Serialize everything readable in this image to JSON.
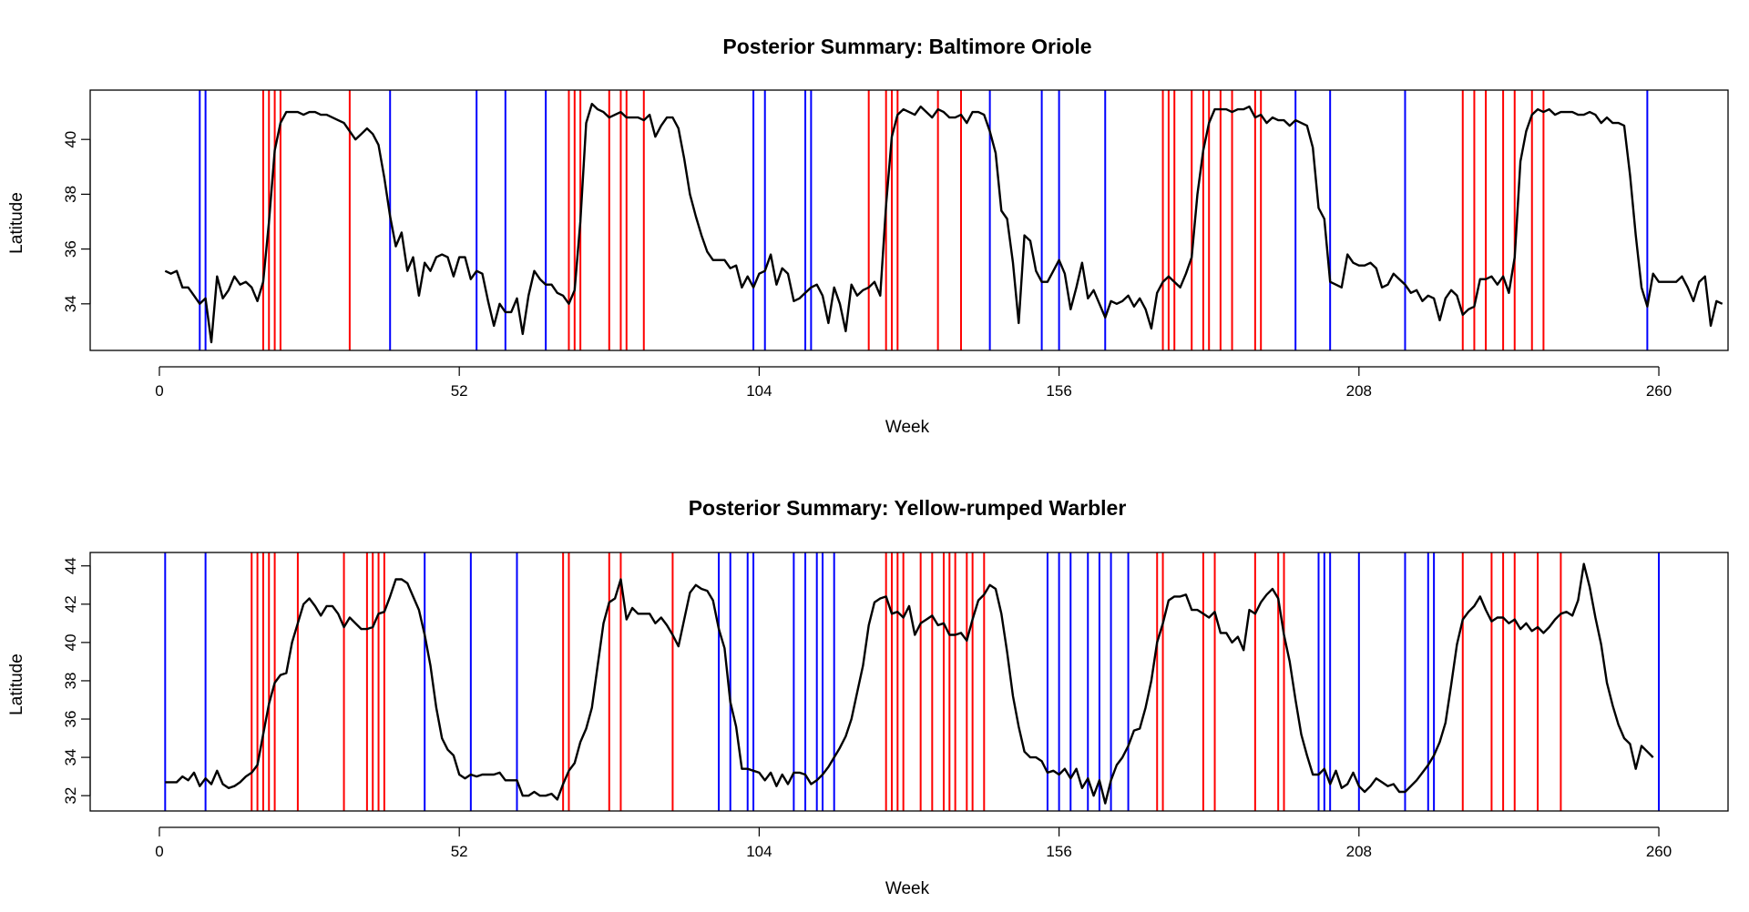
{
  "chart_data": [
    {
      "type": "line",
      "title": "Posterior Summary: Baltimore Oriole",
      "xlabel": "Week",
      "ylabel": "Latitude",
      "xlim": [
        -12,
        272
      ],
      "ylim": [
        32.3,
        41.8
      ],
      "xticks": [
        0,
        52,
        104,
        156,
        208,
        260
      ],
      "yticks": [
        34,
        36,
        38,
        40
      ],
      "line_color": "#000000",
      "blue_color": "#0000ff",
      "red_color": "#ff0000",
      "blue_lines": [
        7,
        8,
        40,
        55,
        60,
        67,
        103,
        105,
        112,
        113,
        144,
        153,
        156,
        164,
        197,
        203,
        216,
        258
      ],
      "red_lines": [
        18,
        19,
        20,
        21,
        33,
        71,
        72,
        73,
        78,
        80,
        81,
        84,
        123,
        126,
        127,
        128,
        135,
        139,
        174,
        175,
        176,
        179,
        181,
        182,
        184,
        186,
        190,
        191,
        226,
        228,
        230,
        233,
        235,
        238,
        240
      ],
      "values": [
        35.2,
        35.1,
        35.2,
        34.6,
        34.6,
        34.3,
        34.0,
        34.2,
        32.6,
        35.0,
        34.2,
        34.5,
        35.0,
        34.7,
        34.8,
        34.6,
        34.1,
        34.8,
        37.0,
        39.6,
        40.6,
        41.0,
        41.0,
        41.0,
        40.9,
        41.0,
        41.0,
        40.9,
        40.9,
        40.8,
        40.7,
        40.6,
        40.3,
        40.0,
        40.2,
        40.4,
        40.2,
        39.8,
        38.6,
        37.2,
        36.1,
        36.6,
        35.2,
        35.7,
        34.3,
        35.5,
        35.2,
        35.7,
        35.8,
        35.7,
        35.0,
        35.7,
        35.7,
        34.9,
        35.2,
        35.1,
        34.1,
        33.2,
        34.0,
        33.7,
        33.7,
        34.2,
        32.9,
        34.3,
        35.2,
        34.9,
        34.7,
        34.7,
        34.4,
        34.3,
        34.0,
        34.5,
        37.0,
        40.6,
        41.3,
        41.1,
        41.0,
        40.8,
        40.9,
        41.0,
        40.8,
        40.8,
        40.8,
        40.7,
        40.9,
        40.1,
        40.5,
        40.8,
        40.8,
        40.4,
        39.3,
        38.0,
        37.2,
        36.5,
        35.9,
        35.6,
        35.6,
        35.6,
        35.3,
        35.4,
        34.6,
        35.0,
        34.6,
        35.1,
        35.2,
        35.8,
        34.7,
        35.3,
        35.1,
        34.1,
        34.2,
        34.4,
        34.6,
        34.7,
        34.3,
        33.3,
        34.6,
        34.0,
        33.0,
        34.7,
        34.3,
        34.5,
        34.6,
        34.8,
        34.3,
        37.6,
        40.1,
        40.9,
        41.1,
        41.0,
        40.9,
        41.2,
        41.0,
        40.8,
        41.1,
        41.0,
        40.8,
        40.8,
        40.9,
        40.6,
        41.0,
        41.0,
        40.9,
        40.3,
        39.5,
        37.4,
        37.1,
        35.5,
        33.3,
        36.5,
        36.3,
        35.2,
        34.8,
        34.8,
        35.2,
        35.6,
        35.1,
        33.8,
        34.6,
        35.5,
        34.2,
        34.5,
        34.0,
        33.5,
        34.1,
        34.0,
        34.1,
        34.3,
        33.9,
        34.2,
        33.8,
        33.1,
        34.4,
        34.8,
        35.0,
        34.8,
        34.6,
        35.1,
        35.7,
        38.0,
        39.6,
        40.6,
        41.1,
        41.1,
        41.1,
        41.0,
        41.1,
        41.1,
        41.2,
        40.8,
        40.9,
        40.6,
        40.8,
        40.7,
        40.7,
        40.5,
        40.7,
        40.6,
        40.5,
        39.7,
        37.5,
        37.1,
        34.8,
        34.7,
        34.6,
        35.8,
        35.5,
        35.4,
        35.4,
        35.5,
        35.3,
        34.6,
        34.7,
        35.1,
        34.9,
        34.7,
        34.4,
        34.5,
        34.1,
        34.3,
        34.2,
        33.4,
        34.2,
        34.5,
        34.3,
        33.6,
        33.8,
        33.9,
        34.9,
        34.9,
        35.0,
        34.7,
        35.0,
        34.4,
        35.7,
        39.2,
        40.3,
        40.9,
        41.1,
        41.0,
        41.1,
        40.9,
        41.0,
        41.0,
        41.0,
        40.9,
        40.9,
        41.0,
        40.9,
        40.6,
        40.8,
        40.6,
        40.6,
        40.5,
        38.7,
        36.5,
        34.6,
        33.9,
        35.1,
        34.8,
        34.8,
        34.8,
        34.8,
        35.0,
        34.6,
        34.1,
        34.8,
        35.0,
        33.2,
        34.1,
        34.0
      ]
    },
    {
      "type": "line",
      "title": "Posterior Summary: Yellow-rumped Warbler",
      "xlabel": "Week",
      "ylabel": "Latitude",
      "xlim": [
        -12,
        272
      ],
      "ylim": [
        31.2,
        44.7
      ],
      "xticks": [
        0,
        52,
        104,
        156,
        208,
        260
      ],
      "yticks": [
        32,
        34,
        36,
        38,
        40,
        42,
        44
      ],
      "line_color": "#000000",
      "blue_color": "#0000ff",
      "red_color": "#ff0000",
      "blue_lines": [
        1,
        8,
        46,
        54,
        62,
        97,
        99,
        102,
        103,
        110,
        112,
        114,
        115,
        117,
        154,
        156,
        158,
        161,
        163,
        165,
        168,
        201,
        202,
        203,
        208,
        216,
        220,
        221,
        260
      ],
      "red_lines": [
        16,
        17,
        18,
        19,
        20,
        24,
        32,
        36,
        37,
        38,
        39,
        70,
        71,
        78,
        80,
        89,
        126,
        127,
        128,
        129,
        132,
        134,
        136,
        137,
        138,
        140,
        141,
        143,
        173,
        174,
        181,
        183,
        190,
        194,
        195,
        226,
        231,
        233,
        235,
        239,
        243
      ],
      "values": [
        32.7,
        32.7,
        32.7,
        33.0,
        32.8,
        33.2,
        32.5,
        32.9,
        32.6,
        33.3,
        32.6,
        32.4,
        32.5,
        32.7,
        33.0,
        33.2,
        33.6,
        35.2,
        36.8,
        37.9,
        38.3,
        38.4,
        40.0,
        41.0,
        42.0,
        42.3,
        41.9,
        41.4,
        41.9,
        41.9,
        41.5,
        40.8,
        41.3,
        41.0,
        40.7,
        40.7,
        40.8,
        41.5,
        41.6,
        42.4,
        43.3,
        43.3,
        43.1,
        42.4,
        41.7,
        40.4,
        38.8,
        36.6,
        35.0,
        34.4,
        34.1,
        33.1,
        32.9,
        33.1,
        33.0,
        33.1,
        33.1,
        33.1,
        33.2,
        32.8,
        32.8,
        32.8,
        32.0,
        32.0,
        32.2,
        32.0,
        32.0,
        32.1,
        31.8,
        32.6,
        33.3,
        33.7,
        34.8,
        35.5,
        36.6,
        38.8,
        41.0,
        42.1,
        42.3,
        43.3,
        41.2,
        41.8,
        41.5,
        41.5,
        41.5,
        41.0,
        41.3,
        40.9,
        40.4,
        39.8,
        41.2,
        42.6,
        43.0,
        42.8,
        42.7,
        42.2,
        40.7,
        39.7,
        36.9,
        35.6,
        33.4,
        33.4,
        33.3,
        33.2,
        32.8,
        33.2,
        32.5,
        33.1,
        32.6,
        33.2,
        33.2,
        33.1,
        32.6,
        32.8,
        33.1,
        33.5,
        34.0,
        34.5,
        35.1,
        36.0,
        37.4,
        38.8,
        40.9,
        42.1,
        42.3,
        42.4,
        41.5,
        41.6,
        41.3,
        41.9,
        40.4,
        41.0,
        41.2,
        41.4,
        40.9,
        41.0,
        40.4,
        40.4,
        40.5,
        40.1,
        41.2,
        42.2,
        42.5,
        43.0,
        42.8,
        41.5,
        39.5,
        37.2,
        35.6,
        34.3,
        34.0,
        34.0,
        33.8,
        33.2,
        33.3,
        33.1,
        33.4,
        32.9,
        33.4,
        32.4,
        32.9,
        32.0,
        32.8,
        31.6,
        32.8,
        33.6,
        34.0,
        34.6,
        35.4,
        35.5,
        36.6,
        38.0,
        40.0,
        41.0,
        42.2,
        42.4,
        42.4,
        42.5,
        41.7,
        41.7,
        41.5,
        41.3,
        41.6,
        40.5,
        40.5,
        40.0,
        40.3,
        39.6,
        41.7,
        41.5,
        42.1,
        42.5,
        42.8,
        42.3,
        40.4,
        39.0,
        37.0,
        35.2,
        34.1,
        33.1,
        33.1,
        33.4,
        32.6,
        33.3,
        32.4,
        32.6,
        33.2,
        32.5,
        32.2,
        32.5,
        32.9,
        32.7,
        32.5,
        32.6,
        32.2,
        32.2,
        32.5,
        32.8,
        33.2,
        33.6,
        34.1,
        34.8,
        35.8,
        37.8,
        39.9,
        41.2,
        41.6,
        41.9,
        42.4,
        41.7,
        41.1,
        41.3,
        41.3,
        41.0,
        41.2,
        40.7,
        41.0,
        40.6,
        40.8,
        40.5,
        40.8,
        41.2,
        41.5,
        41.6,
        41.4,
        42.2,
        44.1,
        42.9,
        41.3,
        39.9,
        37.9,
        36.7,
        35.7,
        35.0,
        34.7,
        33.4,
        34.6,
        34.3,
        34.0
      ]
    }
  ]
}
